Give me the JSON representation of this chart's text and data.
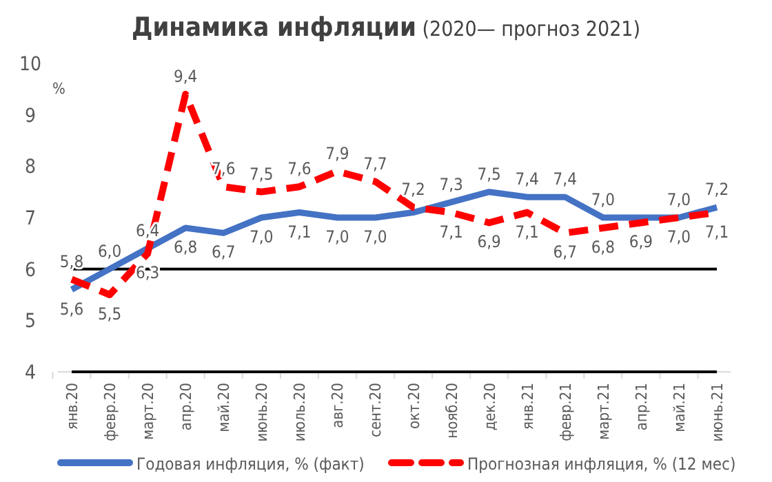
{
  "chart_data": {
    "type": "line",
    "title": "Динамика инфляции",
    "subtitle": "(2020— прогноз 2021)",
    "ylabel": "%",
    "categories": [
      "янв.20",
      "февр.20",
      "март.20",
      "апр.20",
      "май.20",
      "июнь.20",
      "июль.20",
      "авг.20",
      "сент.20",
      "окт.20",
      "нояб.20",
      "дек.20",
      "янв.21",
      "февр.21",
      "март.21",
      "апр.21",
      "май.21",
      "июнь.21"
    ],
    "series": [
      {
        "name": "Годовая инфляция, % (факт)",
        "color": "#4472c4",
        "line_style": "solid",
        "values": [
          5.6,
          6.0,
          6.4,
          6.8,
          6.7,
          7.0,
          7.1,
          7.0,
          7.0,
          7.1,
          7.3,
          7.5,
          7.4,
          7.4,
          7.0,
          7.0,
          7.0,
          7.2
        ],
        "value_labels": [
          "5,6",
          "6,0",
          "6,4",
          "6,8",
          "6,7",
          "7,0",
          "7,1",
          "7,0",
          "7,0",
          null,
          "7,3",
          "7,5",
          "7,4",
          "7,4",
          "7,0",
          null,
          "7,0",
          "7,2"
        ]
      },
      {
        "name": "Прогнозная инфляция, % (12 мес)",
        "color": "#ff0000",
        "line_style": "dashed",
        "values": [
          5.8,
          5.5,
          6.3,
          9.4,
          7.6,
          7.5,
          7.6,
          7.9,
          7.7,
          7.2,
          7.1,
          6.9,
          7.1,
          6.7,
          6.8,
          6.9,
          7.0,
          7.1
        ],
        "value_labels": [
          "5,8",
          "5,5",
          "6,3",
          "9,4",
          "7,6",
          "7,5",
          "7,6",
          "7,9",
          "7,7",
          "7,2",
          "7,1",
          "6,9",
          "7,1",
          "6,7",
          "6,8",
          "6,9",
          "7,0",
          "7,1"
        ]
      }
    ],
    "ylim": [
      4,
      10
    ],
    "yticks": [
      4,
      5,
      6,
      7,
      8,
      9,
      10
    ],
    "grid": false,
    "legend": "bottom",
    "marker": "none",
    "ref_lines": [
      {
        "axis": "y",
        "value": 6,
        "color": "#000000"
      }
    ]
  }
}
